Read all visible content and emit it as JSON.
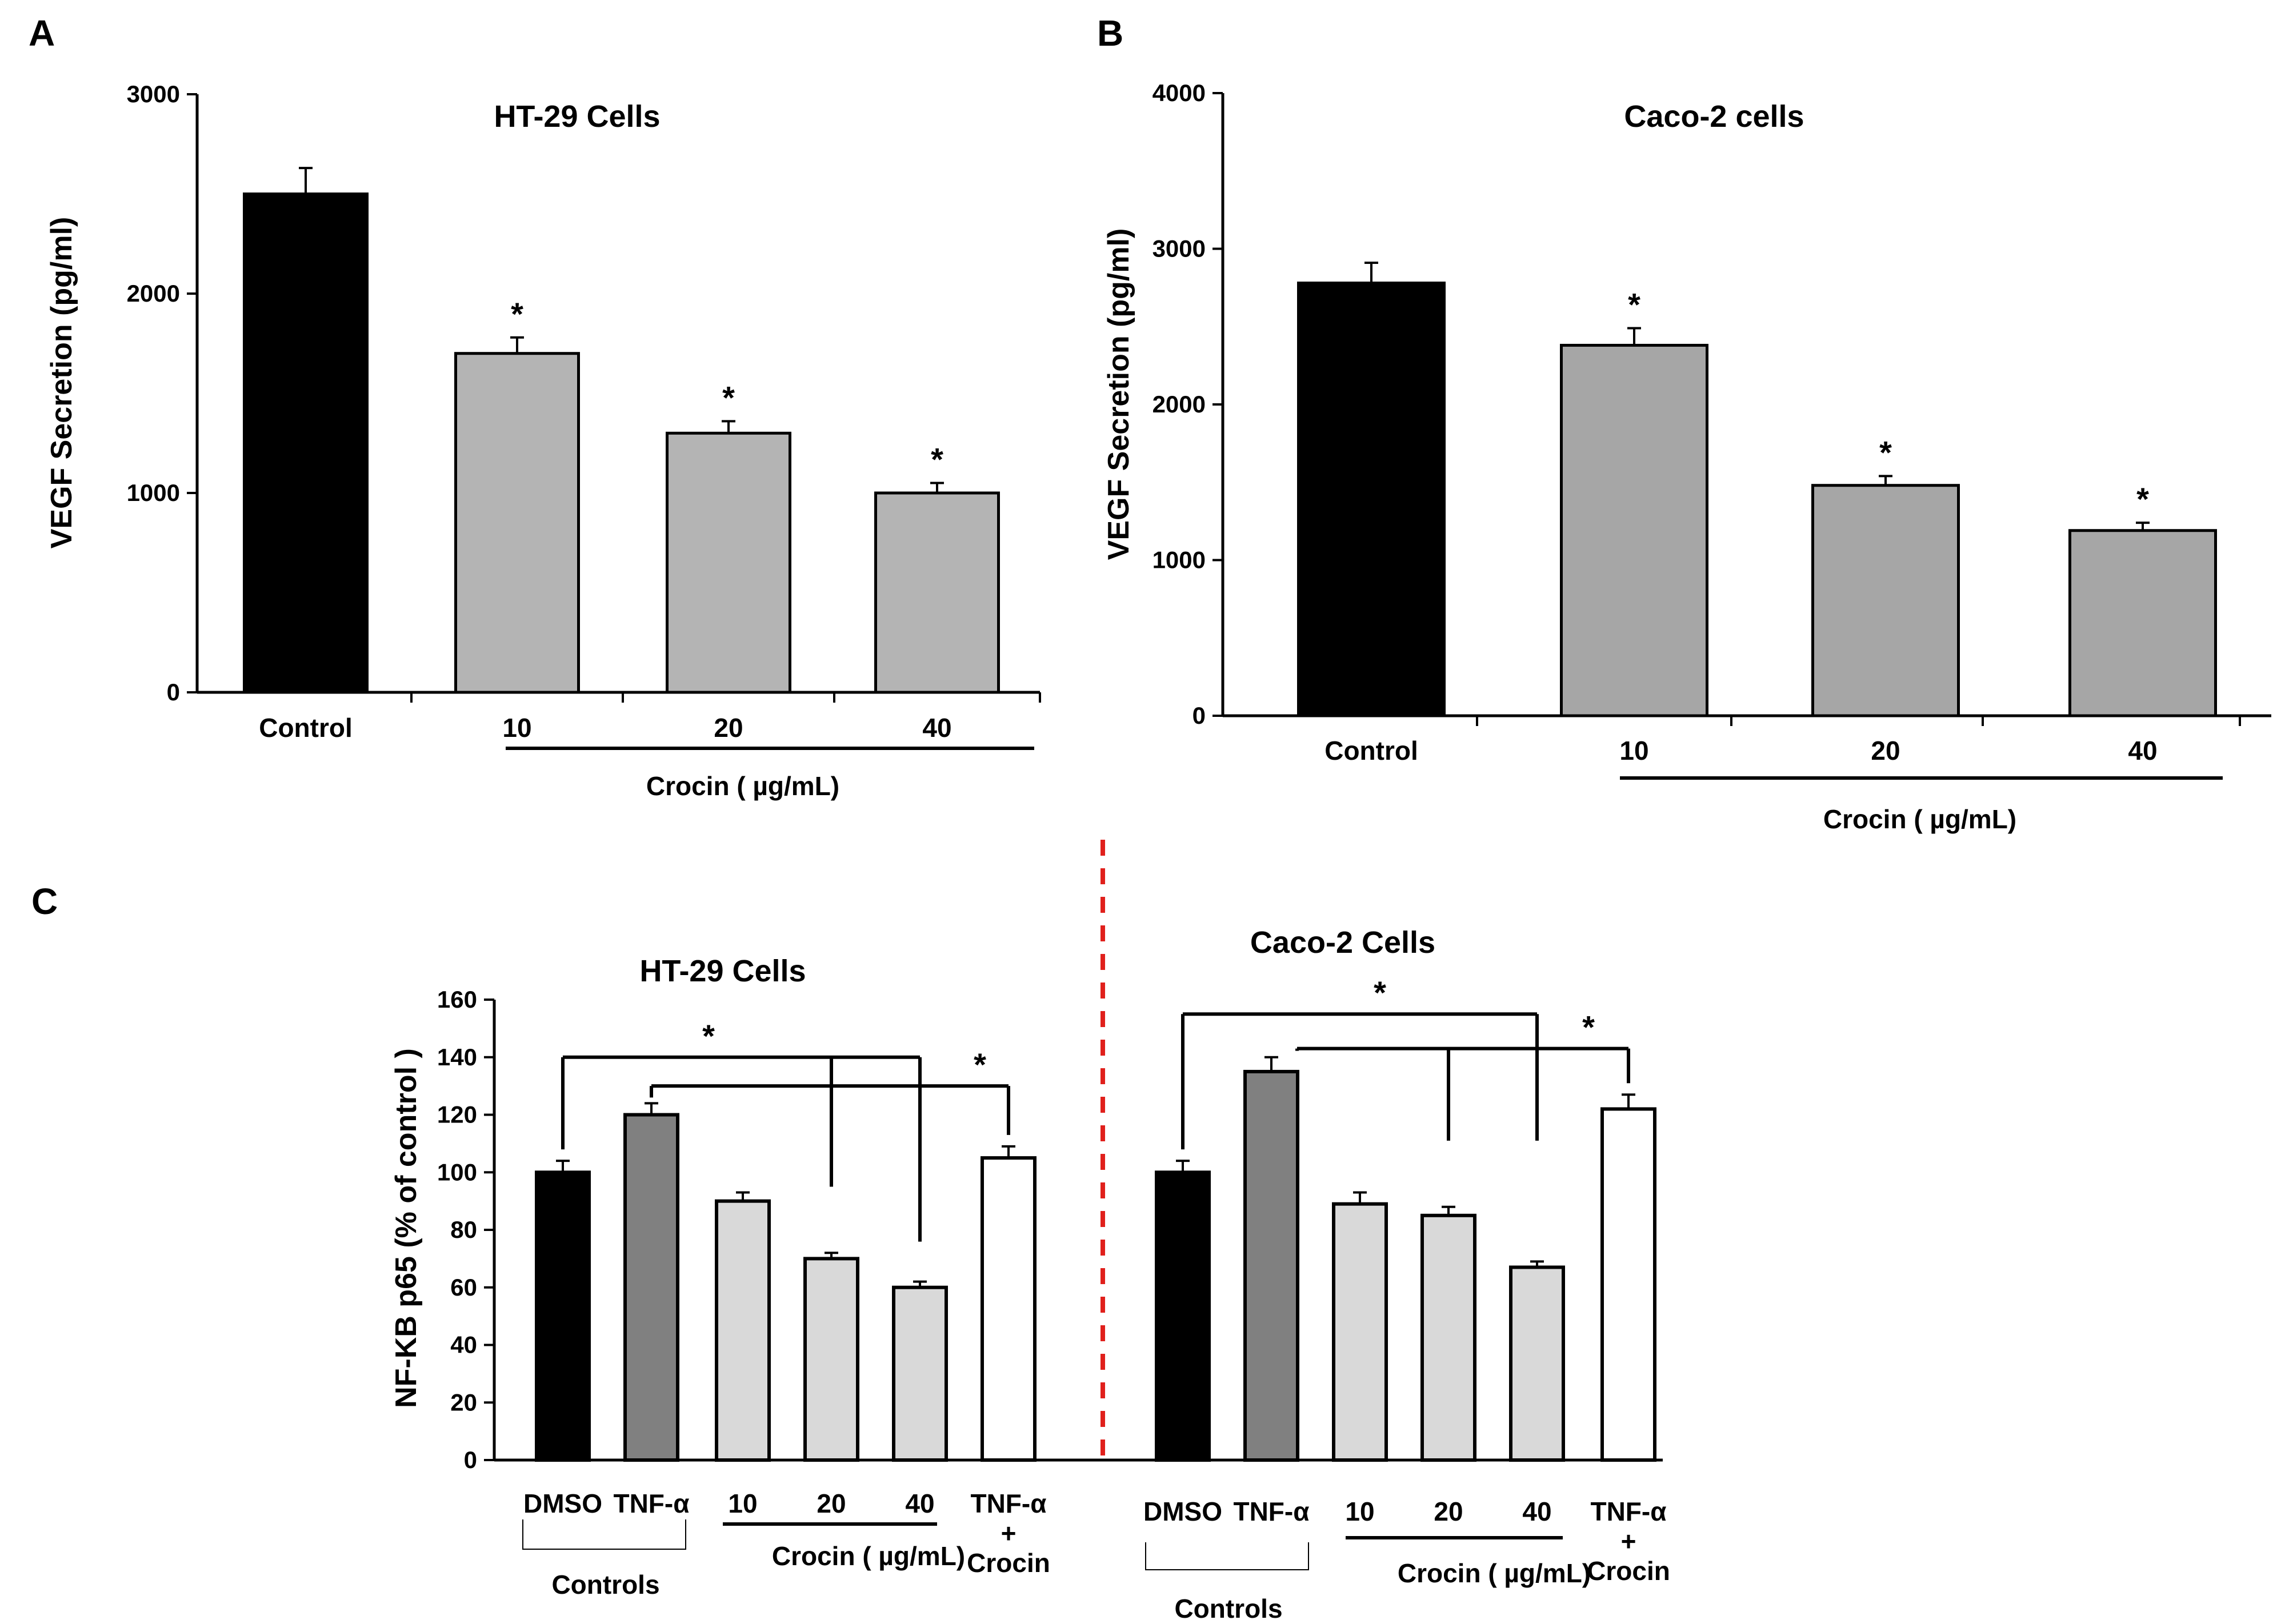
{
  "chart_data": [
    {
      "panel": "A",
      "type": "bar",
      "title": "HT-29 Cells",
      "ylabel": "VEGF Secretion (pg/ml)",
      "xlabel": "",
      "ylim": [
        0,
        3000
      ],
      "yticks": [
        "0",
        "1000",
        "2000",
        "3000"
      ],
      "categories": [
        "Control",
        "10",
        "20",
        "40"
      ],
      "values": [
        2500,
        1700,
        1300,
        1000
      ],
      "errors": [
        130,
        80,
        60,
        50
      ],
      "colors": [
        "#000000",
        "#b4b4b4",
        "#b4b4b4",
        "#b4b4b4"
      ],
      "significance": [
        "",
        "*",
        "*",
        "*"
      ],
      "group_label": "Crocin ( µg/mL)"
    },
    {
      "panel": "B",
      "type": "bar",
      "title": "Caco-2 cells",
      "ylabel": "VEGF Secretion (pg/ml)",
      "xlabel": "",
      "ylim": [
        0,
        4000
      ],
      "yticks": [
        "0",
        "1000",
        "2000",
        "3000",
        "4000"
      ],
      "categories": [
        "Control",
        "10",
        "20",
        "40"
      ],
      "values": [
        2780,
        2380,
        1480,
        1190
      ],
      "errors": [
        130,
        110,
        60,
        50
      ],
      "colors": [
        "#000000",
        "#a6a6a6",
        "#a6a6a6",
        "#a6a6a6"
      ],
      "significance": [
        "",
        "*",
        "*",
        "*"
      ],
      "group_label": "Crocin ( µg/mL)"
    },
    {
      "panel": "C",
      "type": "bar",
      "ylabel": "NF-KB p65 (% of control )",
      "xlabel": "",
      "ylim": [
        0,
        160
      ],
      "yticks": [
        "0",
        "20",
        "40",
        "60",
        "80",
        "100",
        "120",
        "140",
        "160"
      ],
      "groups": [
        {
          "title": "HT-29 Cells",
          "categories": [
            "DMSO",
            "TNF-α",
            "10",
            "20",
            "40",
            "TNF-α\n+\nCrocin"
          ],
          "values": [
            100,
            120,
            90,
            70,
            60,
            105
          ],
          "errors": [
            4,
            4,
            3,
            2,
            2,
            4
          ],
          "colors": [
            "#000000",
            "#808080",
            "#d9d9d9",
            "#d9d9d9",
            "#d9d9d9",
            "#ffffff"
          ]
        },
        {
          "title": "Caco-2 Cells",
          "categories": [
            "DMSO",
            "TNF-α",
            "10",
            "20",
            "40",
            "TNF-α\n+\nCrocin"
          ],
          "values": [
            100,
            135,
            89,
            85,
            67,
            122
          ],
          "errors": [
            4,
            5,
            4,
            3,
            2,
            5
          ],
          "colors": [
            "#000000",
            "#808080",
            "#d9d9d9",
            "#d9d9d9",
            "#d9d9d9",
            "#ffffff"
          ]
        }
      ],
      "controls_label": "Controls",
      "group_label": "Crocin ( µg/mL)",
      "significance_marker": "*",
      "divider_color": "#e0201c"
    }
  ]
}
